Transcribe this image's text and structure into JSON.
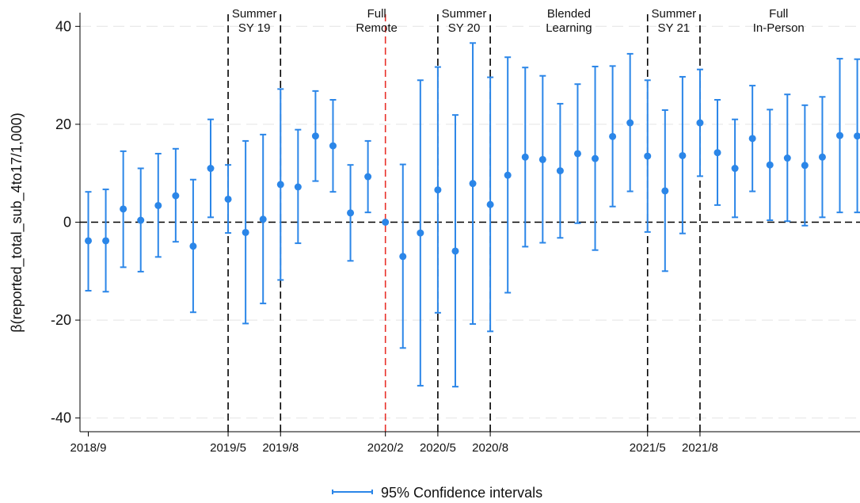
{
  "chart_data": {
    "type": "scatter",
    "subtype": "coefficient plot with 95% confidence interval error bars",
    "ylabel": "β(reported_total_sub_4to17/1,000)",
    "xlabel": "",
    "ylim": [
      -43,
      43
    ],
    "yticks": [
      {
        "value": -40,
        "label": "-40"
      },
      {
        "value": -20,
        "label": "-20"
      },
      {
        "value": 0,
        "label": "0"
      },
      {
        "value": 20,
        "label": "20"
      },
      {
        "value": 40,
        "label": "40"
      }
    ],
    "grid": "horizontal dashed",
    "x_tick_labels": [
      {
        "index": 0,
        "label": "2018/9"
      },
      {
        "index": 8,
        "label": "2019/5"
      },
      {
        "index": 11,
        "label": "2019/8"
      },
      {
        "index": 17,
        "label": "2020/2"
      },
      {
        "index": 20,
        "label": "2020/5"
      },
      {
        "index": 23,
        "label": "2020/8"
      },
      {
        "index": 32,
        "label": "2021/5"
      },
      {
        "index": 35,
        "label": "2021/8"
      }
    ],
    "vertical_lines": [
      {
        "index": 8,
        "color": "#000000"
      },
      {
        "index": 11,
        "color": "#000000"
      },
      {
        "index": 17,
        "color": "#e8302a"
      },
      {
        "index": 20,
        "color": "#000000"
      },
      {
        "index": 23,
        "color": "#000000"
      },
      {
        "index": 32,
        "color": "#000000"
      },
      {
        "index": 35,
        "color": "#000000"
      }
    ],
    "region_labels": [
      {
        "at_index": 9.5,
        "lines": [
          "Summer",
          "SY 19"
        ]
      },
      {
        "at_index": 16.5,
        "lines": [
          "Full",
          "Remote"
        ]
      },
      {
        "at_index": 21.5,
        "lines": [
          "Summer",
          "SY 20"
        ]
      },
      {
        "at_index": 27.5,
        "lines": [
          "Blended",
          "Learning"
        ]
      },
      {
        "at_index": 33.5,
        "lines": [
          "Summer",
          "SY 21"
        ]
      },
      {
        "at_index": 39.5,
        "lines": [
          "Full",
          "In-Person"
        ]
      }
    ],
    "legend": {
      "label": "95% Confidence intervals",
      "position": "bottom-center"
    },
    "series_color": "#2b86e8",
    "points": [
      {
        "index": 0,
        "estimate": -3.8,
        "lower": -14.0,
        "upper": 6.2
      },
      {
        "index": 1,
        "estimate": -3.8,
        "lower": -14.2,
        "upper": 6.7
      },
      {
        "index": 2,
        "estimate": 2.7,
        "lower": -9.2,
        "upper": 14.5
      },
      {
        "index": 3,
        "estimate": 0.4,
        "lower": -10.1,
        "upper": 11.0
      },
      {
        "index": 4,
        "estimate": 3.4,
        "lower": -7.1,
        "upper": 14.0
      },
      {
        "index": 5,
        "estimate": 5.4,
        "lower": -4.0,
        "upper": 15.0
      },
      {
        "index": 6,
        "estimate": -4.9,
        "lower": -18.4,
        "upper": 8.7
      },
      {
        "index": 7,
        "estimate": 11.0,
        "lower": 1.0,
        "upper": 21.0
      },
      {
        "index": 8,
        "estimate": 4.7,
        "lower": -2.2,
        "upper": 11.7
      },
      {
        "index": 9,
        "estimate": -2.1,
        "lower": -20.7,
        "upper": 16.6
      },
      {
        "index": 10,
        "estimate": 0.6,
        "lower": -16.6,
        "upper": 17.9
      },
      {
        "index": 11,
        "estimate": 7.7,
        "lower": -11.8,
        "upper": 27.2
      },
      {
        "index": 12,
        "estimate": 7.2,
        "lower": -4.3,
        "upper": 18.9
      },
      {
        "index": 13,
        "estimate": 17.6,
        "lower": 8.4,
        "upper": 26.8
      },
      {
        "index": 14,
        "estimate": 15.6,
        "lower": 6.2,
        "upper": 25.0
      },
      {
        "index": 15,
        "estimate": 1.9,
        "lower": -7.9,
        "upper": 11.7
      },
      {
        "index": 16,
        "estimate": 9.3,
        "lower": 2.0,
        "upper": 16.6
      },
      {
        "index": 17,
        "estimate": 0.0,
        "lower": 0.0,
        "upper": 0.0
      },
      {
        "index": 18,
        "estimate": -7.0,
        "lower": -25.7,
        "upper": 11.8
      },
      {
        "index": 19,
        "estimate": -2.2,
        "lower": -33.4,
        "upper": 29.0
      },
      {
        "index": 20,
        "estimate": 6.6,
        "lower": -18.5,
        "upper": 31.7
      },
      {
        "index": 21,
        "estimate": -5.9,
        "lower": -33.6,
        "upper": 21.9
      },
      {
        "index": 22,
        "estimate": 7.9,
        "lower": -20.8,
        "upper": 36.6
      },
      {
        "index": 23,
        "estimate": 3.6,
        "lower": -22.3,
        "upper": 29.6
      },
      {
        "index": 24,
        "estimate": 9.6,
        "lower": -14.4,
        "upper": 33.7
      },
      {
        "index": 25,
        "estimate": 13.3,
        "lower": -5.0,
        "upper": 31.6
      },
      {
        "index": 26,
        "estimate": 12.8,
        "lower": -4.2,
        "upper": 29.9
      },
      {
        "index": 27,
        "estimate": 10.5,
        "lower": -3.2,
        "upper": 24.2
      },
      {
        "index": 28,
        "estimate": 14.0,
        "lower": -0.2,
        "upper": 28.2
      },
      {
        "index": 29,
        "estimate": 13.0,
        "lower": -5.7,
        "upper": 31.8
      },
      {
        "index": 30,
        "estimate": 17.5,
        "lower": 3.2,
        "upper": 31.9
      },
      {
        "index": 31,
        "estimate": 20.3,
        "lower": 6.3,
        "upper": 34.4
      },
      {
        "index": 32,
        "estimate": 13.5,
        "lower": -2.0,
        "upper": 29.0
      },
      {
        "index": 33,
        "estimate": 6.4,
        "lower": -10.0,
        "upper": 22.9
      },
      {
        "index": 34,
        "estimate": 13.6,
        "lower": -2.3,
        "upper": 29.7
      },
      {
        "index": 35,
        "estimate": 20.3,
        "lower": 9.4,
        "upper": 31.2
      },
      {
        "index": 36,
        "estimate": 14.2,
        "lower": 3.5,
        "upper": 25.0
      },
      {
        "index": 37,
        "estimate": 11.0,
        "lower": 1.0,
        "upper": 21.0
      },
      {
        "index": 38,
        "estimate": 17.1,
        "lower": 6.3,
        "upper": 27.9
      },
      {
        "index": 39,
        "estimate": 11.7,
        "lower": 0.4,
        "upper": 23.0
      },
      {
        "index": 40,
        "estimate": 13.1,
        "lower": 0.2,
        "upper": 26.1
      },
      {
        "index": 41,
        "estimate": 11.6,
        "lower": -0.7,
        "upper": 23.9
      },
      {
        "index": 42,
        "estimate": 13.3,
        "lower": 1.0,
        "upper": 25.6
      },
      {
        "index": 43,
        "estimate": 17.7,
        "lower": 2.0,
        "upper": 33.4
      },
      {
        "index": 44,
        "estimate": 17.6,
        "lower": 2.0,
        "upper": 33.3
      }
    ]
  }
}
